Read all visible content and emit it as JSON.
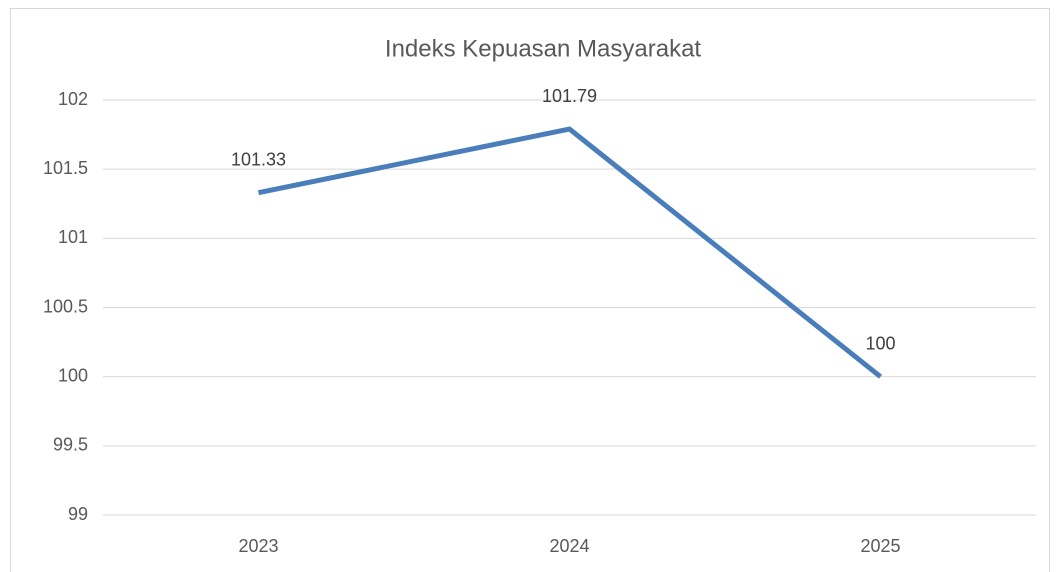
{
  "chart_data": {
    "type": "line",
    "title": "Indeks Kepuasan Masyarakat",
    "categories": [
      "2023",
      "2024",
      "2025"
    ],
    "values": [
      101.33,
      101.79,
      100
    ],
    "color": "#4a7ebb",
    "ylim": [
      99,
      102
    ],
    "yticks": [
      99,
      99.5,
      100,
      100.5,
      101,
      101.5,
      102
    ],
    "grid": true
  }
}
